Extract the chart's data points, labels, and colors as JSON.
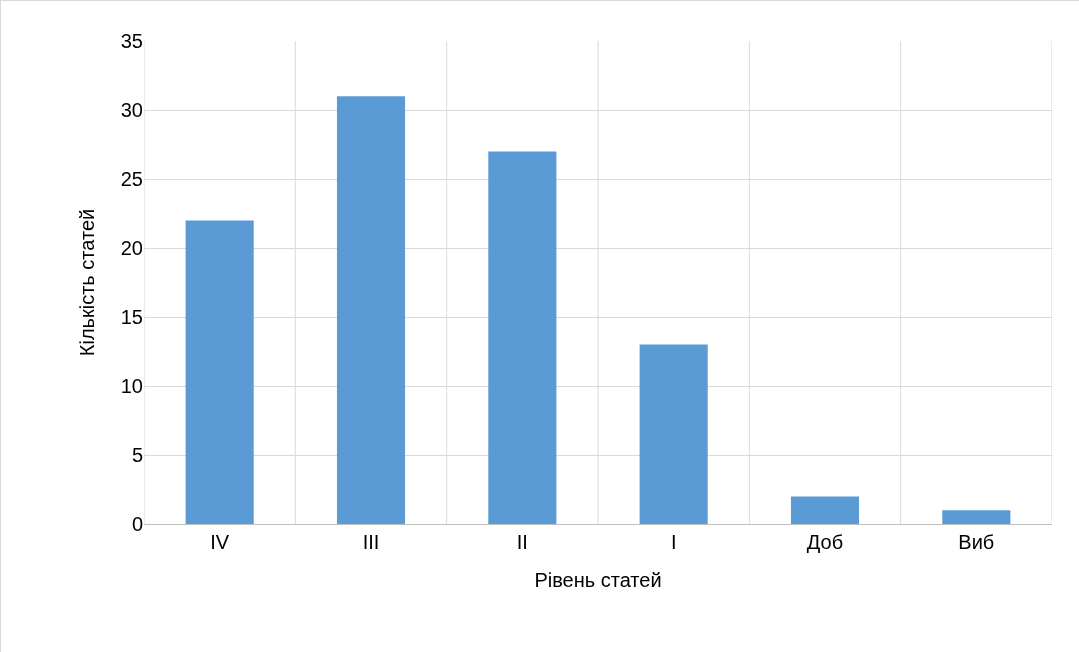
{
  "chart_data": {
    "type": "bar",
    "xlabel": "Рівень статей",
    "ylabel": "Кількість статей",
    "categories": [
      "IV",
      "III",
      "II",
      "I",
      "Доб",
      "Виб"
    ],
    "values": [
      22,
      31,
      27,
      13,
      2,
      1
    ],
    "color": "#5b9bd5",
    "ylim": [
      0,
      35
    ],
    "yticks": [
      0,
      5,
      10,
      15,
      20,
      25,
      30,
      35
    ],
    "grid": true
  }
}
